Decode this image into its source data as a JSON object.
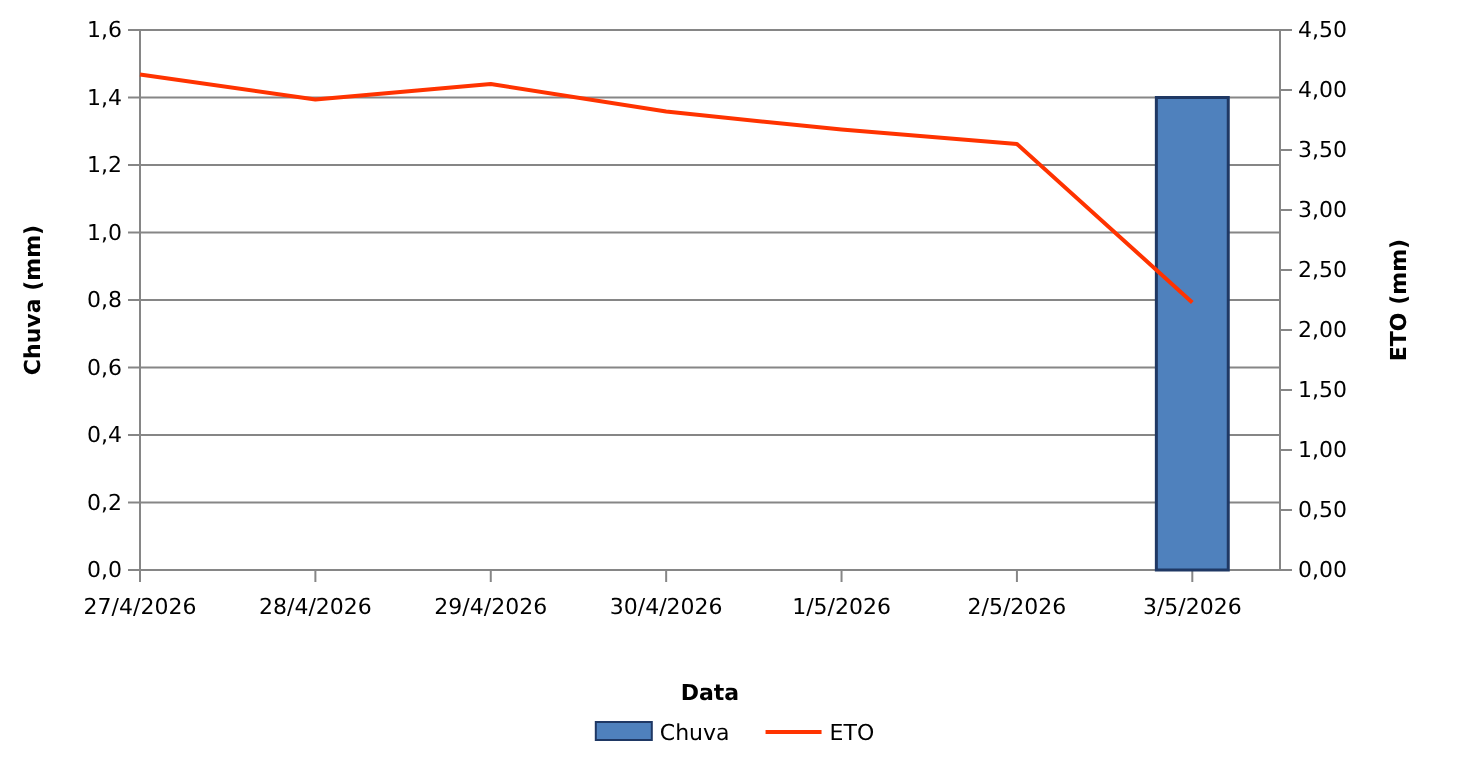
{
  "chart_data": {
    "type": "bar",
    "xlabel": "Data",
    "ylabel": "Chuva (mm)",
    "y2label": "ETO (mm)",
    "categories": [
      "27/4/2026",
      "28/4/2026",
      "29/4/2026",
      "30/4/2026",
      "1/5/2026",
      "2/5/2026",
      "3/5/2026"
    ],
    "series": [
      {
        "name": "Chuva",
        "color": "#4f81bd",
        "values": [
          0,
          0,
          0,
          0,
          0,
          0,
          1.4
        ]
      },
      {
        "name": "ETO",
        "type": "line",
        "axis": "y2",
        "color": "#ff3300",
        "values": [
          4.13,
          3.92,
          4.05,
          3.82,
          3.67,
          3.55,
          2.23
        ]
      }
    ],
    "ylim": [
      0,
      1.6
    ],
    "yticks": [
      {
        "value": 0,
        "label": "0,0"
      },
      {
        "value": 0.2,
        "label": "0,2"
      },
      {
        "value": 0.4,
        "label": "0,4"
      },
      {
        "value": 0.6,
        "label": "0,6"
      },
      {
        "value": 0.8,
        "label": "0,8"
      },
      {
        "value": 1,
        "label": "1,0"
      },
      {
        "value": 1.2,
        "label": "1,2"
      },
      {
        "value": 1.4,
        "label": "1,4"
      },
      {
        "value": 1.6,
        "label": "1,6"
      }
    ],
    "y2lim": [
      0,
      4.5
    ],
    "y2ticks": [
      {
        "value": 0,
        "label": "0,00"
      },
      {
        "value": 0.5,
        "label": "0,50"
      },
      {
        "value": 1,
        "label": "1,00"
      },
      {
        "value": 1.5,
        "label": "1,50"
      },
      {
        "value": 2,
        "label": "2,00"
      },
      {
        "value": 2.5,
        "label": "2,50"
      },
      {
        "value": 3,
        "label": "3,00"
      },
      {
        "value": 3.5,
        "label": "3,50"
      },
      {
        "value": 4,
        "label": "4,00"
      },
      {
        "value": 4.5,
        "label": "4,50"
      }
    ],
    "grid": "y",
    "legend": "bottom"
  }
}
